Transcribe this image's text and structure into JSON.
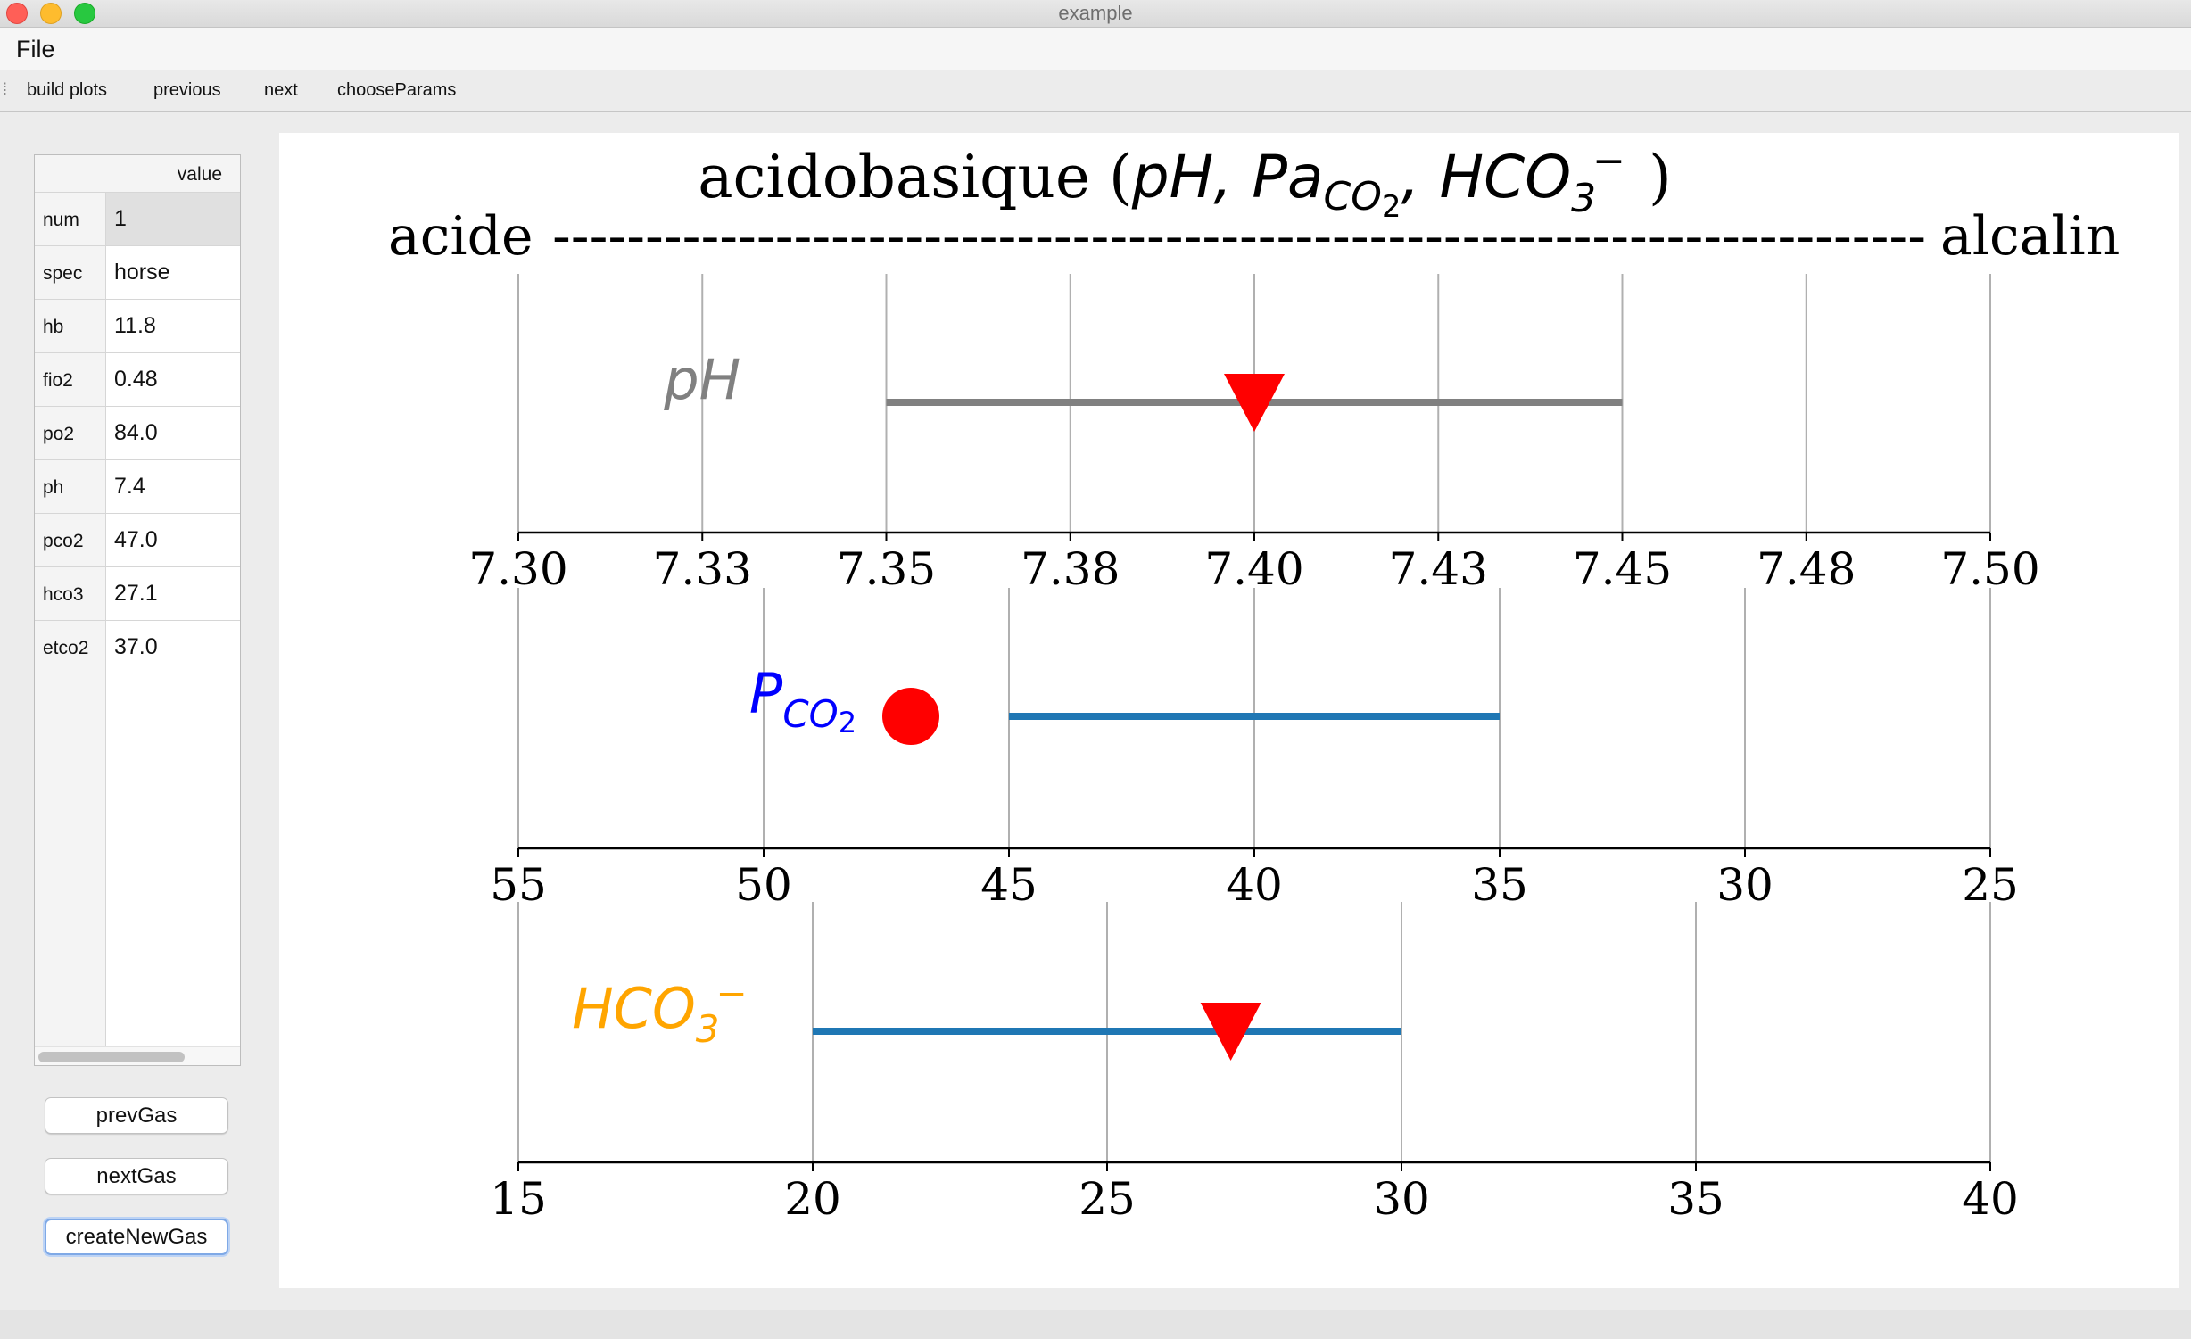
{
  "window": {
    "title": "example"
  },
  "menu": {
    "file": "File"
  },
  "toolbar": {
    "build_plots": "build plots",
    "previous": "previous",
    "next": "next",
    "choose_params": "chooseParams"
  },
  "table": {
    "column_header": "value",
    "rows": [
      {
        "key": "num",
        "value": "1"
      },
      {
        "key": "spec",
        "value": "horse"
      },
      {
        "key": "hb",
        "value": "11.8"
      },
      {
        "key": "fio2",
        "value": "0.48"
      },
      {
        "key": "po2",
        "value": "84.0"
      },
      {
        "key": "ph",
        "value": "7.4"
      },
      {
        "key": "pco2",
        "value": "47.0"
      },
      {
        "key": "hco3",
        "value": "27.1"
      },
      {
        "key": "etco2",
        "value": "37.0"
      }
    ]
  },
  "buttons": {
    "prev": "prevGas",
    "next": "nextGas",
    "create": "createNewGas"
  },
  "chart_data": {
    "type": "scatter",
    "title": {
      "text": "acidobasique (",
      "pH": "pH",
      "sep1": ",",
      "pa": "Pa",
      "pa_sub": "CO",
      "pa_sub2": "2",
      "sep2": ",",
      "hco": "HCO",
      "hco_sub": "3",
      "hco_sup": "−",
      "close": ")"
    },
    "subtitle": {
      "left": "acide",
      "dashes": "--------------------------------------------------------------------------",
      "right": "alcalin"
    },
    "colors": {
      "ph_label": "#808080",
      "pco2_label": "#0000ff",
      "hco3_label": "#ffa500",
      "marker": "#ff0000",
      "ph_range": "#808080",
      "range": "#1f77b4"
    },
    "panels": [
      {
        "label": "pH",
        "xlim": [
          7.3,
          7.5
        ],
        "inverted": false,
        "ticks": [
          7.3,
          7.325,
          7.35,
          7.375,
          7.4,
          7.425,
          7.45,
          7.475,
          7.5
        ],
        "tick_labels": [
          "7.30",
          "7.33",
          "7.35",
          "7.38",
          "7.40",
          "7.43",
          "7.45",
          "7.48",
          "7.50"
        ],
        "normal_range": [
          7.35,
          7.45
        ],
        "value": 7.4,
        "marker": "triangle-down",
        "label_x": 7.325
      },
      {
        "label": "P",
        "label_sub": "CO",
        "label_sub2": "2",
        "xlim": [
          55,
          25
        ],
        "inverted": true,
        "ticks": [
          55,
          50,
          45,
          40,
          35,
          30,
          25
        ],
        "tick_labels": [
          "55",
          "50",
          "45",
          "40",
          "35",
          "30",
          "25"
        ],
        "normal_range": [
          45,
          35
        ],
        "value": 47.0,
        "marker": "circle",
        "label_x": 49.2
      },
      {
        "label": "HCO",
        "label_sub": "3",
        "label_sup": "−",
        "xlim": [
          15,
          40
        ],
        "inverted": false,
        "ticks": [
          15,
          20,
          25,
          30,
          35,
          40
        ],
        "tick_labels": [
          "15",
          "20",
          "25",
          "30",
          "35",
          "40"
        ],
        "normal_range": [
          20,
          30
        ],
        "value": 27.1,
        "marker": "triangle-down",
        "label_x": 17.4
      }
    ]
  }
}
